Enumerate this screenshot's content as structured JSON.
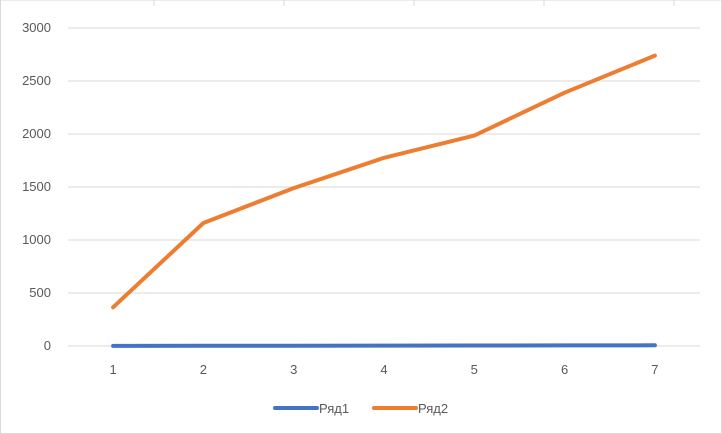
{
  "chart_data": {
    "type": "line",
    "categories": [
      "1",
      "2",
      "3",
      "4",
      "5",
      "6",
      "7"
    ],
    "series": [
      {
        "name": "Ряд1",
        "color": "#4472c4",
        "values": [
          1,
          2,
          3,
          4,
          5,
          6,
          7
        ]
      },
      {
        "name": "Ряд2",
        "color": "#ed7d31",
        "values": [
          365,
          1160,
          1490,
          1775,
          1985,
          2390,
          2740
        ]
      }
    ],
    "ylim": [
      0,
      3000
    ],
    "yticks": [
      0,
      500,
      1000,
      1500,
      2000,
      2500,
      3000
    ],
    "grid": "horizontal",
    "legend": "bottom"
  }
}
